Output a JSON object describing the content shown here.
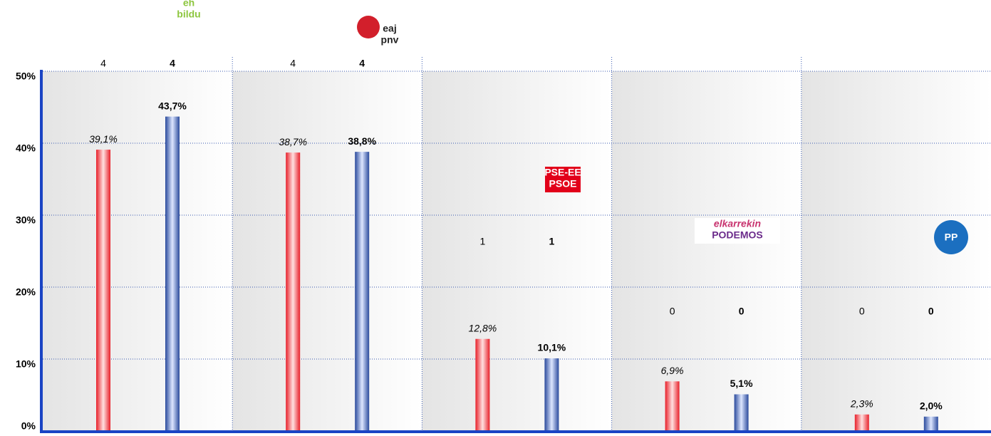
{
  "chart_data": {
    "type": "bar",
    "categories": [
      "bildu",
      "pnv",
      "PSOE",
      "PODEMOS",
      "PP"
    ],
    "logo_subtexts": [
      "eh",
      "eaj",
      "PSE-EE",
      "elkarrekin",
      null
    ],
    "series": [
      {
        "color": "#e8202a",
        "values": [
          39.1,
          38.7,
          12.8,
          6.9,
          2.3
        ],
        "value_labels": [
          "39,1%",
          "38,7%",
          "12,8%",
          "6,9%",
          "2,3%"
        ],
        "seats": [
          4,
          4,
          1,
          0,
          0
        ]
      },
      {
        "color": "#2a4a9c",
        "values": [
          43.7,
          38.8,
          10.1,
          5.1,
          2.0
        ],
        "value_labels": [
          "43,7%",
          "38,8%",
          "10,1%",
          "5,1%",
          "2,0%"
        ],
        "seats": [
          4,
          4,
          1,
          0,
          0
        ]
      }
    ],
    "ylim": [
      0,
      50
    ],
    "yticks": [
      {
        "value": 0,
        "label": "0%"
      },
      {
        "value": 10,
        "label": "10%"
      },
      {
        "value": 20,
        "label": "20%"
      },
      {
        "value": 30,
        "label": "30%"
      },
      {
        "value": 40,
        "label": "40%"
      },
      {
        "value": 50,
        "label": "50%"
      }
    ],
    "grid": true
  }
}
